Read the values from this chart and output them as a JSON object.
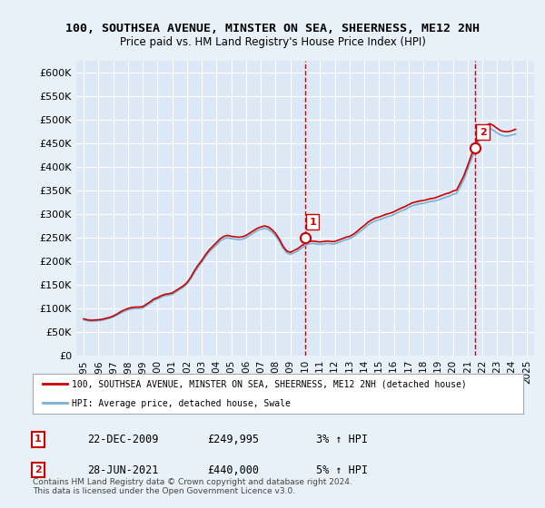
{
  "title": "100, SOUTHSEA AVENUE, MINSTER ON SEA, SHEERNESS, ME12 2NH",
  "subtitle": "Price paid vs. HM Land Registry's House Price Index (HPI)",
  "ylim": [
    0,
    625000
  ],
  "yticks": [
    0,
    50000,
    100000,
    150000,
    200000,
    250000,
    300000,
    350000,
    400000,
    450000,
    500000,
    550000,
    600000
  ],
  "ytick_labels": [
    "£0",
    "£50K",
    "£100K",
    "£150K",
    "£200K",
    "£250K",
    "£300K",
    "£350K",
    "£400K",
    "£450K",
    "£500K",
    "£550K",
    "£600K"
  ],
  "background_color": "#e8f0f8",
  "plot_bg_color": "#dce8f5",
  "grid_color": "#ffffff",
  "hpi_color": "#7ab0d4",
  "price_color": "#cc0000",
  "sale1_x": 2009.97,
  "sale1_y": 249995,
  "sale1_label": "1",
  "sale2_x": 2021.49,
  "sale2_y": 440000,
  "sale2_label": "2",
  "vline_color": "#cc0000",
  "annotation_box_color": "#cc0000",
  "legend_label_price": "100, SOUTHSEA AVENUE, MINSTER ON SEA, SHEERNESS, ME12 2NH (detached house)",
  "legend_label_hpi": "HPI: Average price, detached house, Swale",
  "note1_date": "22-DEC-2009",
  "note1_price": "£249,995",
  "note1_hpi": "3% ↑ HPI",
  "note2_date": "28-JUN-2021",
  "note2_price": "£440,000",
  "note2_hpi": "5% ↑ HPI",
  "footer": "Contains HM Land Registry data © Crown copyright and database right 2024.\nThis data is licensed under the Open Government Licence v3.0.",
  "hpi_data": {
    "years": [
      1995.0,
      1995.25,
      1995.5,
      1995.75,
      1996.0,
      1996.25,
      1996.5,
      1996.75,
      1997.0,
      1997.25,
      1997.5,
      1997.75,
      1998.0,
      1998.25,
      1998.5,
      1998.75,
      1999.0,
      1999.25,
      1999.5,
      1999.75,
      2000.0,
      2000.25,
      2000.5,
      2000.75,
      2001.0,
      2001.25,
      2001.5,
      2001.75,
      2002.0,
      2002.25,
      2002.5,
      2002.75,
      2003.0,
      2003.25,
      2003.5,
      2003.75,
      2004.0,
      2004.25,
      2004.5,
      2004.75,
      2005.0,
      2005.25,
      2005.5,
      2005.75,
      2006.0,
      2006.25,
      2006.5,
      2006.75,
      2007.0,
      2007.25,
      2007.5,
      2007.75,
      2008.0,
      2008.25,
      2008.5,
      2008.75,
      2009.0,
      2009.25,
      2009.5,
      2009.75,
      2010.0,
      2010.25,
      2010.5,
      2010.75,
      2011.0,
      2011.25,
      2011.5,
      2011.75,
      2012.0,
      2012.25,
      2012.5,
      2012.75,
      2013.0,
      2013.25,
      2013.5,
      2013.75,
      2014.0,
      2014.25,
      2014.5,
      2014.75,
      2015.0,
      2015.25,
      2015.5,
      2015.75,
      2016.0,
      2016.25,
      2016.5,
      2016.75,
      2017.0,
      2017.25,
      2017.5,
      2017.75,
      2018.0,
      2018.25,
      2018.5,
      2018.75,
      2019.0,
      2019.25,
      2019.5,
      2019.75,
      2020.0,
      2020.25,
      2020.5,
      2020.75,
      2021.0,
      2021.25,
      2021.5,
      2021.75,
      2022.0,
      2022.25,
      2022.5,
      2022.75,
      2023.0,
      2023.25,
      2023.5,
      2023.75,
      2024.0,
      2024.25
    ],
    "values": [
      76000,
      74000,
      73000,
      73500,
      74000,
      75000,
      77000,
      79000,
      82000,
      86000,
      90000,
      94000,
      97000,
      99000,
      100000,
      100000,
      101000,
      106000,
      111000,
      117000,
      120000,
      124000,
      127000,
      128000,
      130000,
      135000,
      140000,
      145000,
      152000,
      163000,
      176000,
      188000,
      198000,
      210000,
      220000,
      228000,
      235000,
      243000,
      248000,
      250000,
      248000,
      247000,
      246000,
      247000,
      250000,
      255000,
      260000,
      265000,
      268000,
      270000,
      268000,
      262000,
      254000,
      242000,
      228000,
      218000,
      215000,
      218000,
      222000,
      228000,
      233000,
      237000,
      238000,
      237000,
      236000,
      237000,
      238000,
      237000,
      237000,
      240000,
      243000,
      246000,
      248000,
      252000,
      258000,
      264000,
      270000,
      277000,
      282000,
      286000,
      288000,
      291000,
      294000,
      296000,
      299000,
      303000,
      307000,
      310000,
      314000,
      318000,
      320000,
      322000,
      323000,
      325000,
      327000,
      328000,
      330000,
      333000,
      336000,
      338000,
      342000,
      344000,
      358000,
      374000,
      395000,
      416000,
      435000,
      455000,
      470000,
      478000,
      482000,
      478000,
      472000,
      468000,
      466000,
      466000,
      468000,
      470000
    ]
  },
  "price_data": {
    "years": [
      1995.0,
      1995.25,
      1995.5,
      1995.75,
      1996.0,
      1996.25,
      1996.5,
      1996.75,
      1997.0,
      1997.25,
      1997.5,
      1997.75,
      1998.0,
      1998.25,
      1998.5,
      1998.75,
      1999.0,
      1999.25,
      1999.5,
      1999.75,
      2000.0,
      2000.25,
      2000.5,
      2000.75,
      2001.0,
      2001.25,
      2001.5,
      2001.75,
      2002.0,
      2002.25,
      2002.5,
      2002.75,
      2003.0,
      2003.25,
      2003.5,
      2003.75,
      2004.0,
      2004.25,
      2004.5,
      2004.75,
      2005.0,
      2005.25,
      2005.5,
      2005.75,
      2006.0,
      2006.25,
      2006.5,
      2006.75,
      2007.0,
      2007.25,
      2007.5,
      2007.75,
      2008.0,
      2008.25,
      2008.5,
      2008.75,
      2009.0,
      2009.25,
      2009.5,
      2009.75,
      2010.0,
      2010.25,
      2010.5,
      2010.75,
      2011.0,
      2011.25,
      2011.5,
      2011.75,
      2012.0,
      2012.25,
      2012.5,
      2012.75,
      2013.0,
      2013.25,
      2013.5,
      2013.75,
      2014.0,
      2014.25,
      2014.5,
      2014.75,
      2015.0,
      2015.25,
      2015.5,
      2015.75,
      2016.0,
      2016.25,
      2016.5,
      2016.75,
      2017.0,
      2017.25,
      2017.5,
      2017.75,
      2018.0,
      2018.25,
      2018.5,
      2018.75,
      2019.0,
      2019.25,
      2019.5,
      2019.75,
      2020.0,
      2020.25,
      2020.5,
      2020.75,
      2021.0,
      2021.25,
      2021.5,
      2021.75,
      2022.0,
      2022.25,
      2022.5,
      2022.75,
      2023.0,
      2023.25,
      2023.5,
      2023.75,
      2024.0,
      2024.25
    ],
    "values": [
      78000,
      76000,
      75000,
      75500,
      76000,
      77000,
      79000,
      81000,
      84000,
      88000,
      93000,
      97000,
      100000,
      102000,
      103000,
      103000,
      104000,
      109000,
      114000,
      120000,
      123000,
      127000,
      130000,
      131000,
      133000,
      138000,
      143000,
      148000,
      155000,
      166000,
      180000,
      192000,
      202000,
      214000,
      224000,
      232000,
      240000,
      248000,
      253000,
      255000,
      253000,
      252000,
      251000,
      252000,
      255000,
      260000,
      265000,
      270000,
      273000,
      275000,
      273000,
      267000,
      259000,
      247000,
      232000,
      222000,
      219000,
      223000,
      227000,
      233000,
      238000,
      242000,
      243000,
      242000,
      241000,
      242000,
      243000,
      242000,
      242000,
      245000,
      248000,
      251000,
      253000,
      257000,
      263000,
      270000,
      276000,
      283000,
      288000,
      292000,
      294000,
      297000,
      300000,
      302000,
      305000,
      309000,
      313000,
      316000,
      320000,
      324000,
      326000,
      328000,
      329000,
      331000,
      333000,
      334000,
      337000,
      340000,
      343000,
      345000,
      349000,
      351000,
      366000,
      382000,
      403000,
      425000,
      444000,
      464000,
      480000,
      488000,
      492000,
      488000,
      482000,
      477000,
      475000,
      475000,
      477000,
      480000
    ]
  },
  "xlim": [
    1994.5,
    2025.5
  ],
  "xticks": [
    1995,
    1996,
    1997,
    1998,
    1999,
    2000,
    2001,
    2002,
    2003,
    2004,
    2005,
    2006,
    2007,
    2008,
    2009,
    2010,
    2011,
    2012,
    2013,
    2014,
    2015,
    2016,
    2017,
    2018,
    2019,
    2020,
    2021,
    2022,
    2023,
    2024,
    2025
  ]
}
